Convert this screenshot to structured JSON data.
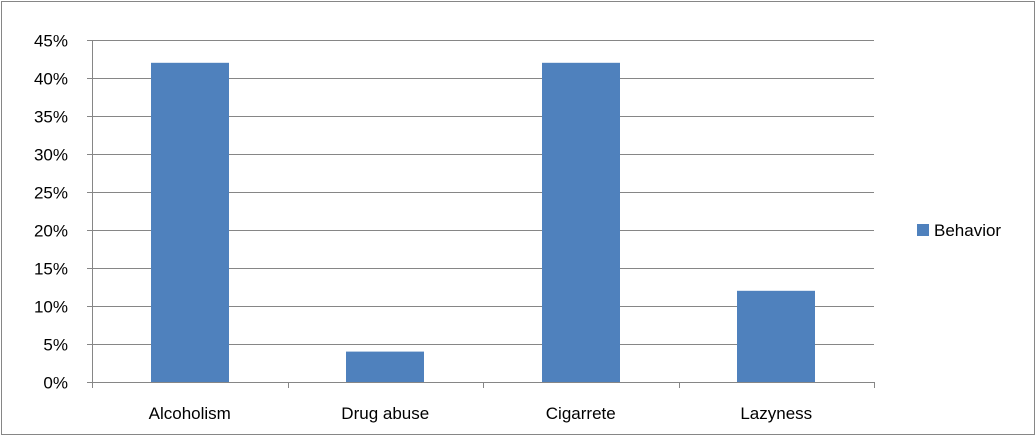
{
  "chart_data": {
    "type": "bar",
    "categories": [
      "Alcoholism",
      "Drug abuse",
      "Cigarrete",
      "Lazyness"
    ],
    "series": [
      {
        "name": "Behavior",
        "values": [
          0.42,
          0.04,
          0.42,
          0.12
        ],
        "color": "#4F81BD"
      }
    ],
    "ylim": [
      0,
      0.45
    ],
    "yticks": [
      {
        "value": 0.0,
        "label": "0%"
      },
      {
        "value": 0.05,
        "label": "5%"
      },
      {
        "value": 0.1,
        "label": "10%"
      },
      {
        "value": 0.15,
        "label": "15%"
      },
      {
        "value": 0.2,
        "label": "20%"
      },
      {
        "value": 0.25,
        "label": "25%"
      },
      {
        "value": 0.3,
        "label": "30%"
      },
      {
        "value": 0.35,
        "label": "35%"
      },
      {
        "value": 0.4,
        "label": "40%"
      },
      {
        "value": 0.45,
        "label": "45%"
      }
    ],
    "grid": true,
    "legend_position": "right",
    "gridline_color": "#868686",
    "axis_color": "#868686"
  }
}
